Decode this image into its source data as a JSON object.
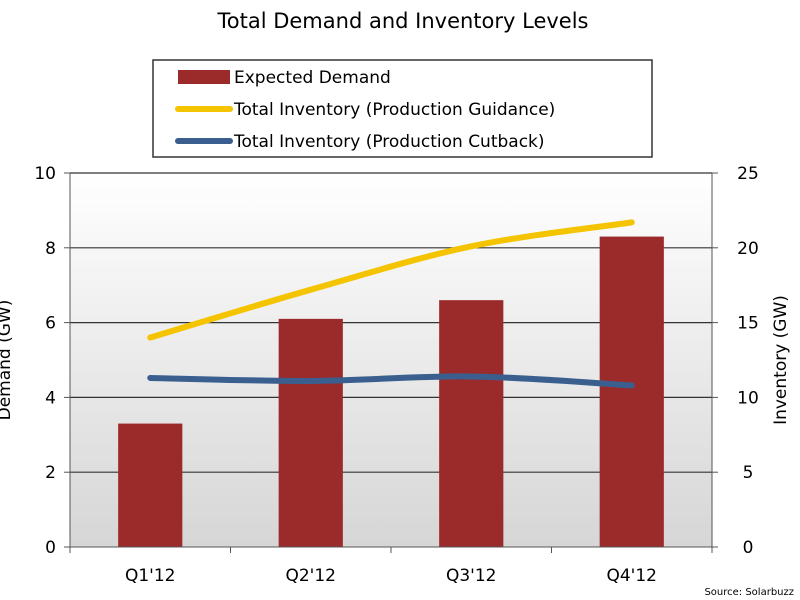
{
  "chart_data": {
    "type": "bar+line",
    "title": "Total Demand  and Inventory Levels",
    "categories": [
      "Q1'12",
      "Q2'12",
      "Q3'12",
      "Q4'12"
    ],
    "ylabel_left": "Demand (GW)",
    "ylabel_right": "Inventory (GW)",
    "ylim_left": [
      0,
      10
    ],
    "ylim_right": [
      0,
      25
    ],
    "yticks_left": [
      "0",
      "2",
      "4",
      "6",
      "8",
      "10"
    ],
    "yticks_right": [
      "0",
      "5",
      "10",
      "15",
      "20",
      "25"
    ],
    "grid": true,
    "legend_position": "top-center",
    "source": "Source: Solarbuzz",
    "series": [
      {
        "name": "Expected Demand",
        "kind": "bar",
        "axis": "left",
        "color": "#9b2a2a",
        "values": [
          3.3,
          6.1,
          6.6,
          8.3
        ]
      },
      {
        "name": "Total Inventory (Production Guidance)",
        "kind": "line",
        "axis": "right",
        "color": "#f5c400",
        "values": [
          14.0,
          17.2,
          20.1,
          21.7
        ]
      },
      {
        "name": "Total Inventory (Production Cutback)",
        "kind": "line",
        "axis": "right",
        "color": "#3a5f8f",
        "values": [
          11.3,
          11.1,
          11.4,
          10.8
        ]
      }
    ]
  }
}
